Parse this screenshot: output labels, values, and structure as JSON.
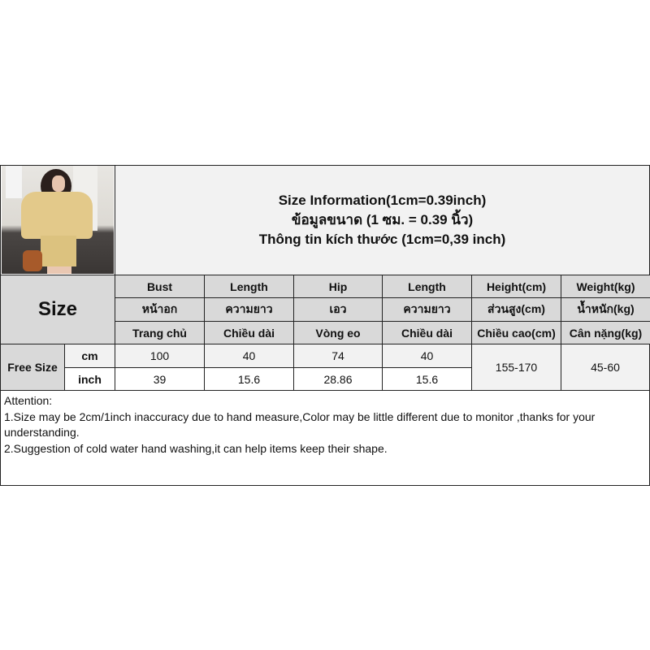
{
  "title": {
    "line1": "Size Information(1cm=0.39inch)",
    "line2": "ข้อมูลขนาด (1 ซม. = 0.39 นิ้ว)",
    "line3": "Thông tin kích thước (1cm=0,39 inch)"
  },
  "size_label": "Size",
  "columns": [
    {
      "en": "Bust",
      "th": "หน้าอก",
      "vi": "Trang chủ"
    },
    {
      "en": "Length",
      "th": "ความยาว",
      "vi": "Chiều dài"
    },
    {
      "en": "Hip",
      "th": "เอว",
      "vi": "Vòng eo"
    },
    {
      "en": "Length",
      "th": "ความยาว",
      "vi": "Chiều dài"
    },
    {
      "en": "Height(cm)",
      "th": "ส่วนสูง(cm)",
      "vi": "Chiều cao(cm)"
    },
    {
      "en": "Weight(kg)",
      "th": "น้ำหนัก(kg)",
      "vi": "Cân nặng(kg)"
    }
  ],
  "rows": {
    "size": "Free Size",
    "cm": {
      "unit": "cm",
      "values": [
        "100",
        "40",
        "74",
        "40"
      ]
    },
    "inch": {
      "unit": "inch",
      "values": [
        "39",
        "15.6",
        "28.86",
        "15.6"
      ]
    },
    "height": "155-170",
    "weight": "45-60"
  },
  "attention": {
    "heading": "Attention:",
    "note1": "1.Size may be 2cm/1inch inaccuracy due to hand measure,Color may be little different due to monitor ,thanks for your understanding.",
    "note2": "2.Suggestion of cold water hand washing,it can help items keep their shape."
  }
}
